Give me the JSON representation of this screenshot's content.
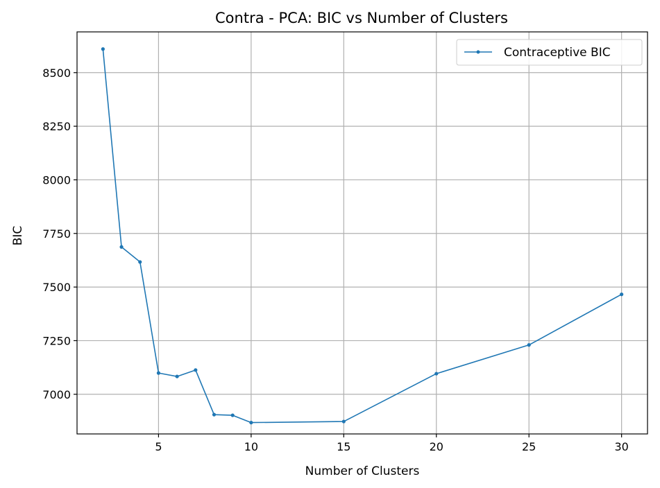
{
  "chart_data": {
    "type": "line",
    "title": "Contra - PCA: BIC vs Number of Clusters",
    "xlabel": "Number of Clusters",
    "ylabel": "BIC",
    "xlim": [
      0.6,
      31.4
    ],
    "ylim": [
      6815,
      8690
    ],
    "xticks": [
      5,
      10,
      15,
      20,
      25,
      30
    ],
    "xtick_labels": [
      "5",
      "10",
      "15",
      "20",
      "25",
      "30"
    ],
    "yticks": [
      7000,
      7250,
      7500,
      7750,
      8000,
      8250,
      8500
    ],
    "ytick_labels": [
      "7000",
      "7250",
      "7500",
      "7750",
      "8000",
      "8250",
      "8500"
    ],
    "grid": true,
    "legend_position": "top-right",
    "series": [
      {
        "name": "Contraceptive BIC",
        "color": "#1f77b4",
        "marker": "circle",
        "x": [
          2,
          3,
          4,
          5,
          6,
          7,
          8,
          9,
          10,
          15,
          20,
          25,
          30
        ],
        "y": [
          8610,
          7687,
          7617,
          7099,
          7083,
          7113,
          6905,
          6902,
          6868,
          6873,
          7096,
          7230,
          7466
        ]
      }
    ]
  }
}
